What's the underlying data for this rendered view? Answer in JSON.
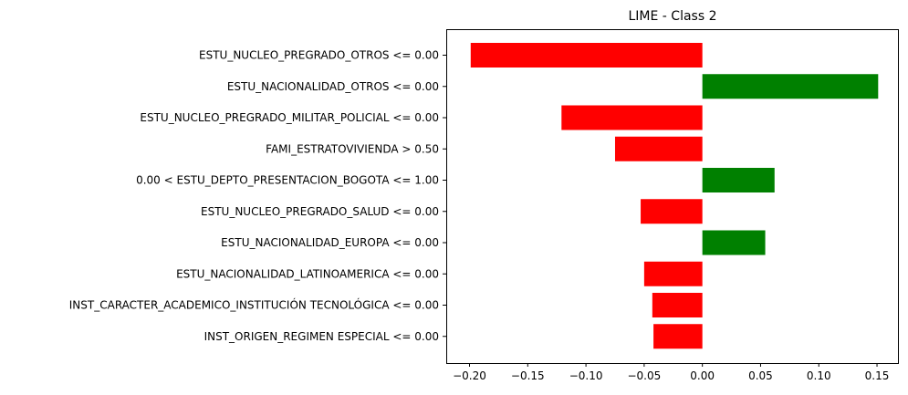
{
  "chart_data": {
    "type": "bar",
    "orientation": "horizontal",
    "title": "LIME - Class 2",
    "xlabel": "",
    "ylabel": "",
    "xlim": [
      -0.22,
      0.168
    ],
    "xticks": [
      -0.2,
      -0.15,
      -0.1,
      -0.05,
      0.0,
      0.05,
      0.1,
      0.15
    ],
    "xtick_labels": [
      "−0.20",
      "−0.15",
      "−0.10",
      "−0.05",
      "0.00",
      "0.05",
      "0.10",
      "0.15"
    ],
    "grid": false,
    "legend": "none",
    "positive_color": "#008000",
    "negative_color": "#ff0000",
    "categories": [
      "ESTU_NUCLEO_PREGRADO_OTROS <= 0.00",
      "ESTU_NACIONALIDAD_OTROS <= 0.00",
      "ESTU_NUCLEO_PREGRADO_MILITAR_POLICIAL <= 0.00",
      "FAMI_ESTRATOVIVIENDA > 0.50",
      "0.00 < ESTU_DEPTO_PRESENTACION_BOGOTA <= 1.00",
      "ESTU_NUCLEO_PREGRADO_SALUD <= 0.00",
      "ESTU_NACIONALIDAD_EUROPA <= 0.00",
      "ESTU_NACIONALIDAD_LATINOAMERICA <= 0.00",
      "INST_CARACTER_ACADEMICO_INSTITUCIÓN TECNOLÓGICA <= 0.00",
      "INST_ORIGEN_REGIMEN ESPECIAL <= 0.00"
    ],
    "values": [
      -0.199,
      0.151,
      -0.121,
      -0.075,
      0.062,
      -0.053,
      0.054,
      -0.05,
      -0.043,
      -0.042
    ]
  }
}
